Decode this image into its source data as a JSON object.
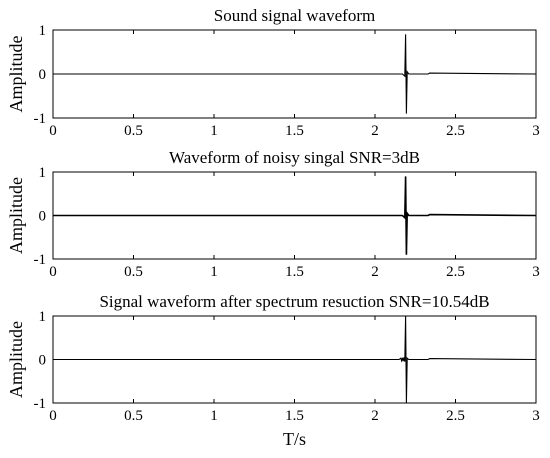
{
  "chart_data": [
    {
      "type": "line",
      "title": "Sound signal waveform",
      "xlabel": "",
      "ylabel": "Amplitude",
      "xlim": [
        0,
        3
      ],
      "ylim": [
        -1,
        1
      ],
      "xticks": [
        0,
        0.5,
        1,
        1.5,
        2,
        2.5,
        3
      ],
      "yticks": [
        1,
        0,
        -1
      ],
      "grid": false,
      "series": [
        {
          "x": [
            0,
            2.17,
            2.185,
            2.19,
            2.195,
            2.2,
            2.21,
            2.33,
            2.34,
            3
          ],
          "y": [
            0,
            0,
            -0.05,
            0.9,
            -0.9,
            0.05,
            0,
            0,
            0.02,
            0
          ]
        }
      ]
    },
    {
      "type": "line",
      "title": "Waveform of noisy singal SNR=3dB",
      "xlabel": "",
      "ylabel": "Amplitude",
      "xlim": [
        0,
        3
      ],
      "ylim": [
        -1,
        1
      ],
      "xticks": [
        0,
        0.5,
        1,
        1.5,
        2,
        2.5,
        3
      ],
      "yticks": [
        1,
        0,
        -1
      ],
      "grid": false,
      "series": [
        {
          "x": [
            0,
            2.17,
            2.185,
            2.19,
            2.195,
            2.2,
            2.21,
            2.33,
            2.34,
            3
          ],
          "y": [
            0,
            0,
            -0.05,
            0.9,
            -0.9,
            0.05,
            0,
            0,
            0.02,
            0
          ]
        }
      ]
    },
    {
      "type": "line",
      "title": "Signal waveform after spectrum resuction SNR=10.54dB",
      "xlabel": "T/s",
      "ylabel": "Amplitude",
      "xlim": [
        0,
        3
      ],
      "ylim": [
        -1,
        1
      ],
      "xticks": [
        0,
        0.5,
        1,
        1.5,
        2,
        2.5,
        3
      ],
      "yticks": [
        1,
        0,
        -1
      ],
      "grid": false,
      "series": [
        {
          "x": [
            0,
            2.15,
            2.16,
            2.165,
            2.17,
            2.175,
            2.18,
            2.185,
            2.19,
            2.195,
            2.2,
            2.21,
            2.33,
            2.34,
            3
          ],
          "y": [
            0,
            0,
            0.03,
            -0.03,
            0.04,
            -0.04,
            0.05,
            -0.05,
            1.0,
            -1.0,
            0.03,
            0,
            0,
            0.02,
            0
          ]
        }
      ]
    }
  ]
}
